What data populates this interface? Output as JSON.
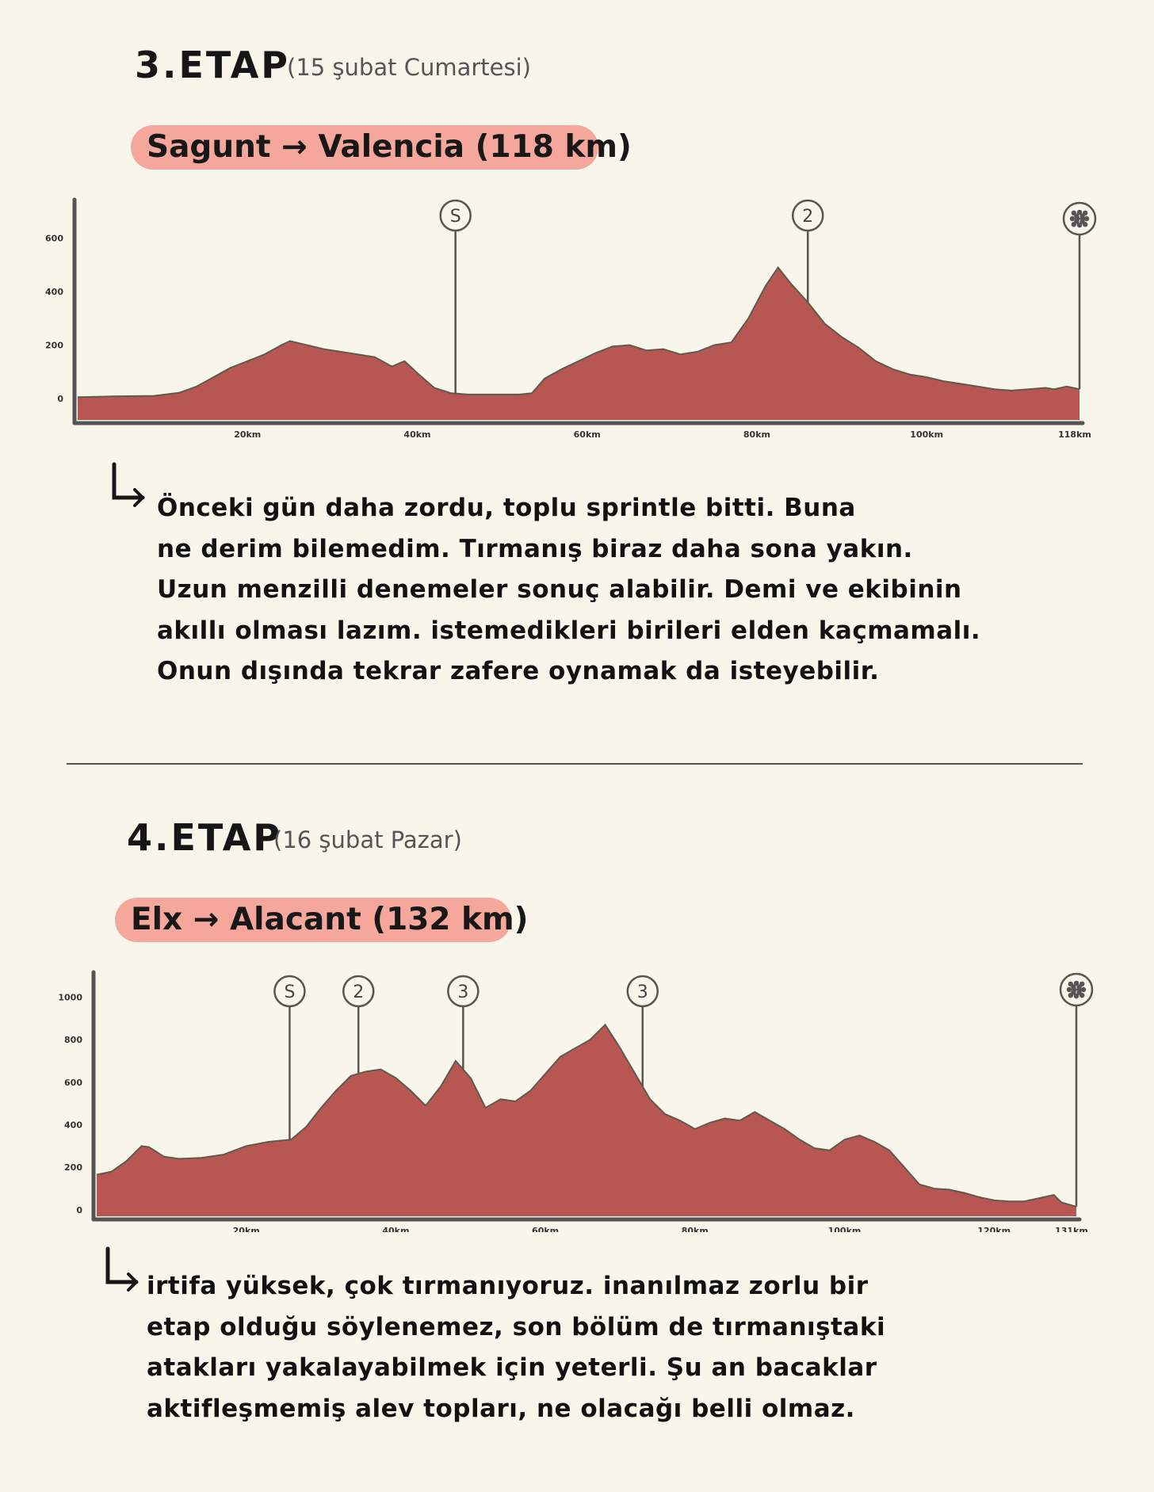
{
  "stages": [
    {
      "title": "3.ETAP",
      "date": "(15 şubat Cumartesi)",
      "route": "Sagunt → Valencia (118 km)",
      "note_lines": [
        "Önceki gün daha zordu, toplu sprintle bitti. Buna",
        "ne derim bilemedim. Tırmanış biraz daha sona yakın.",
        "Uzun menzilli denemeler sonuç alabilir. Demi ve ekibinin",
        "akıllı olması lazım. istemedikleri birileri elden kaçmamalı.",
        "Onun dışında tekrar zafere oynamak da isteyebilir."
      ],
      "chart_data": {
        "type": "area",
        "xlabel": "",
        "ylabel": "",
        "x_tick_labels": [
          "20km",
          "40km",
          "60km",
          "80km",
          "100km",
          "118km"
        ],
        "x_ticks": [
          20,
          40,
          60,
          80,
          100,
          118
        ],
        "y_ticks": [
          0,
          200,
          400,
          600
        ],
        "xlim": [
          0,
          118
        ],
        "ylim": [
          -80,
          720
        ],
        "color": "#b85651",
        "x": [
          0,
          4,
          9,
          12,
          14,
          16,
          18,
          20,
          22,
          24,
          25,
          27,
          29,
          32,
          35,
          37,
          38.5,
          40,
          42,
          44,
          46,
          48,
          50,
          52,
          53.5,
          55,
          57,
          59,
          61,
          63,
          65,
          67,
          69,
          71,
          73,
          75,
          77,
          79,
          81,
          82.5,
          84,
          86,
          88,
          90,
          92,
          94,
          96,
          98,
          100,
          102,
          104,
          106,
          108,
          110,
          112,
          114,
          115,
          116.5,
          118
        ],
        "y": [
          5,
          8,
          10,
          22,
          45,
          80,
          115,
          140,
          165,
          200,
          215,
          200,
          185,
          170,
          155,
          120,
          140,
          95,
          40,
          20,
          15,
          15,
          15,
          15,
          20,
          75,
          110,
          140,
          170,
          195,
          200,
          180,
          185,
          165,
          175,
          200,
          210,
          300,
          420,
          490,
          430,
          360,
          280,
          230,
          190,
          140,
          110,
          90,
          80,
          65,
          55,
          45,
          35,
          30,
          35,
          40,
          35,
          45,
          35
        ],
        "markers": [
          {
            "label": "S",
            "x": 44.5,
            "type": "sprint"
          },
          {
            "label": "2",
            "x": 86,
            "type": "climb"
          },
          {
            "label": "●",
            "x": 118,
            "type": "finish"
          }
        ]
      }
    },
    {
      "title": "4.ETAP",
      "date": "(16 şubat Pazar)",
      "route": "Elx → Alacant (132 km)",
      "note_lines": [
        "irtifa yüksek, çok tırmanıyoruz. inanılmaz zorlu bir",
        "etap olduğu söylenemez, son bölüm de tırmanıştaki",
        "atakları yakalayabilmek için yeterli. Şu an bacaklar",
        "aktifleşmemiş alev topları, ne olacağı belli olmaz."
      ],
      "chart_data": {
        "type": "area",
        "xlabel": "",
        "ylabel": "",
        "x_tick_labels": [
          "20km",
          "40km",
          "60km",
          "80km",
          "100km",
          "120km",
          "131km"
        ],
        "x_ticks": [
          20,
          40,
          60,
          80,
          100,
          120,
          131
        ],
        "y_ticks": [
          0,
          200,
          400,
          600,
          800,
          1000
        ],
        "xlim": [
          0,
          131
        ],
        "ylim": [
          -30,
          1050
        ],
        "color": "#b85651",
        "x": [
          0,
          2,
          4,
          6,
          7,
          9,
          11,
          14,
          17,
          20,
          23,
          26,
          28,
          30,
          32,
          34,
          36,
          38,
          40,
          42,
          44,
          46,
          48,
          50,
          52,
          54,
          56,
          58,
          60,
          62,
          64,
          66,
          68,
          70,
          72,
          74,
          76,
          78,
          80,
          82,
          84,
          86,
          88,
          90,
          92,
          94,
          96,
          98,
          100,
          102,
          104,
          106,
          108,
          110,
          112,
          114,
          116,
          118,
          120,
          122,
          124,
          126,
          128,
          129,
          131
        ],
        "y": [
          165,
          180,
          230,
          300,
          295,
          250,
          240,
          245,
          260,
          300,
          320,
          330,
          390,
          480,
          560,
          630,
          650,
          660,
          620,
          560,
          490,
          580,
          700,
          620,
          480,
          520,
          510,
          560,
          640,
          720,
          760,
          800,
          870,
          760,
          640,
          520,
          450,
          420,
          380,
          410,
          430,
          420,
          460,
          420,
          380,
          330,
          290,
          280,
          330,
          350,
          320,
          280,
          200,
          120,
          100,
          95,
          80,
          60,
          45,
          40,
          40,
          55,
          70,
          35,
          15
        ],
        "markers": [
          {
            "label": "S",
            "x": 25.8,
            "type": "sprint"
          },
          {
            "label": "2",
            "x": 35,
            "type": "climb"
          },
          {
            "label": "3",
            "x": 49,
            "type": "climb"
          },
          {
            "label": "3",
            "x": 73,
            "type": "climb"
          },
          {
            "label": "●",
            "x": 131,
            "type": "finish"
          }
        ]
      }
    }
  ]
}
